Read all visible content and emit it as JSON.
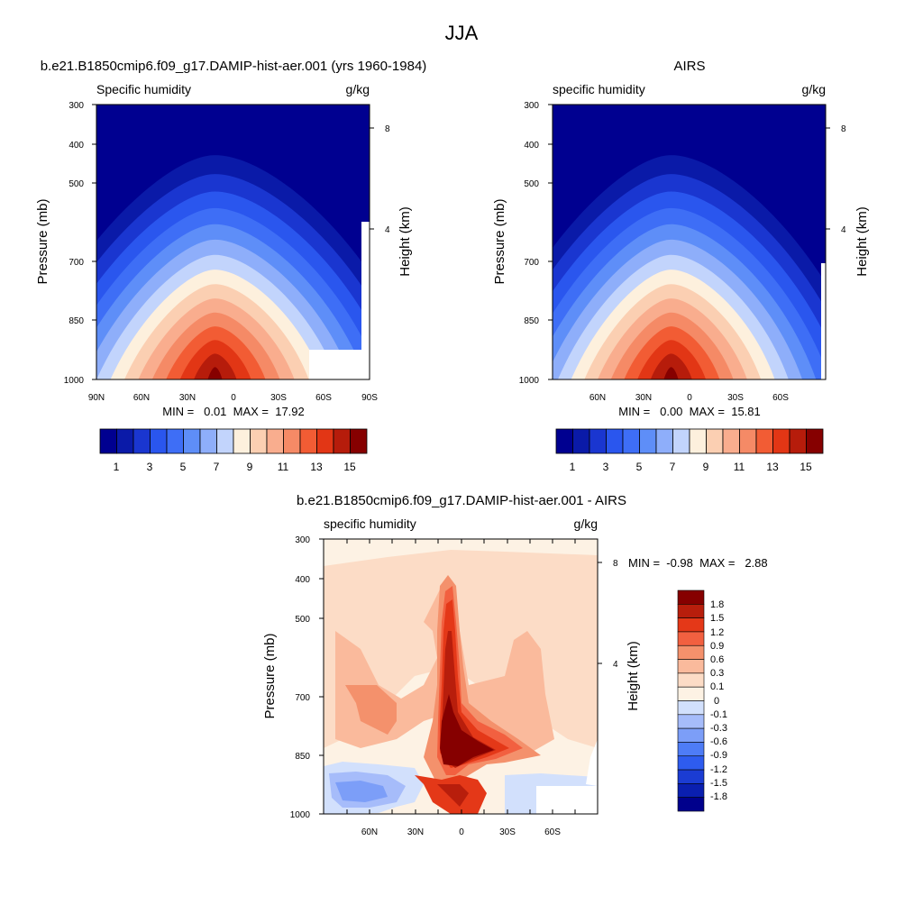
{
  "figure_title": "JJA",
  "chart_data": [
    {
      "type": "contour",
      "panel": "model",
      "title": "b.e21.B1850cmip6.f09_g17.DAMIP-hist-aer.001 (yrs 1960-1984)",
      "left_label": "Specific humidity",
      "right_label": "g/kg",
      "ylabel": "Pressure (mb)",
      "ylabel_right": "Height (km)",
      "pressure_ticks": [
        "300",
        "400",
        "500",
        "700",
        "850",
        "1000"
      ],
      "height_ticks": [
        "8",
        "4"
      ],
      "x_ticks": [
        "90N",
        "60N",
        "30N",
        "0",
        "30S",
        "60S",
        "90S"
      ],
      "xlim": [
        90,
        -90
      ],
      "ylim": [
        1000,
        300
      ],
      "min_max_text": "MIN =   0.01  MAX =  17.92",
      "min": 0.01,
      "max": 17.92,
      "colorbar_levels": [
        1,
        2,
        3,
        4,
        5,
        6,
        7,
        8,
        9,
        10,
        11,
        12,
        13,
        14,
        15
      ],
      "colorbar_labels": [
        "1",
        "3",
        "5",
        "7",
        "9",
        "11",
        "13",
        "15"
      ],
      "peak_lat": 10,
      "peak_value": 17.92,
      "missing_region": {
        "lat_from": -50,
        "lat_to": -90,
        "p_from": 925,
        "p_to": 1000
      }
    },
    {
      "type": "contour",
      "panel": "obs",
      "title": "AIRS",
      "left_label": "specific humidity",
      "right_label": "g/kg",
      "ylabel": "Pressure (mb)",
      "ylabel_right": "Height (km)",
      "pressure_ticks": [
        "300",
        "400",
        "500",
        "700",
        "850",
        "1000"
      ],
      "height_ticks": [
        "8",
        "4"
      ],
      "x_ticks": [
        "60N",
        "30N",
        "0",
        "30S",
        "60S"
      ],
      "xlim": [
        90,
        -90
      ],
      "ylim": [
        1000,
        300
      ],
      "min_max_text": "MIN =   0.00  MAX =  15.81",
      "min": 0.0,
      "max": 15.81,
      "colorbar_levels": [
        1,
        2,
        3,
        4,
        5,
        6,
        7,
        8,
        9,
        10,
        11,
        12,
        13,
        14,
        15
      ],
      "colorbar_labels": [
        "1",
        "3",
        "5",
        "7",
        "9",
        "11",
        "13",
        "15"
      ],
      "peak_lat": 10,
      "peak_value": 15.81
    },
    {
      "type": "contour",
      "panel": "difference",
      "title": "b.e21.B1850cmip6.f09_g17.DAMIP-hist-aer.001 - AIRS",
      "left_label": "specific humidity",
      "right_label": "g/kg",
      "ylabel": "Pressure (mb)",
      "ylabel_right": "Height (km)",
      "pressure_ticks": [
        "300",
        "400",
        "500",
        "700",
        "850",
        "1000"
      ],
      "height_ticks": [
        "8",
        "4"
      ],
      "x_ticks": [
        "60N",
        "30N",
        "0",
        "30S",
        "60S"
      ],
      "xlim": [
        90,
        -90
      ],
      "ylim": [
        1000,
        300
      ],
      "min_max_text": "MIN =  -0.98  MAX =   2.88",
      "min": -0.98,
      "max": 2.88,
      "colorbar_levels": [
        -1.8,
        -1.5,
        -1.2,
        -0.9,
        -0.6,
        -0.3,
        -0.1,
        0,
        0.1,
        0.3,
        0.6,
        0.9,
        1.2,
        1.5,
        1.8
      ],
      "colorbar_labels": [
        "1.8",
        "1.5",
        "1.2",
        "0.9",
        "0.6",
        "0.3",
        "0.1",
        "0",
        "-0.1",
        "-0.3",
        "-0.6",
        "-0.9",
        "-1.2",
        "-1.5",
        "-1.8"
      ],
      "peak_lat": 0,
      "peak_pressure": 850,
      "peak_value": 2.88
    }
  ],
  "colors": {
    "full_field": [
      "#000090",
      "#0a1aa8",
      "#1a36d0",
      "#2a56ee",
      "#3e6ef6",
      "#5e8ef8",
      "#8eaefa",
      "#c2d4fc",
      "#fdf0dd",
      "#fbcfb2",
      "#f9ad8e",
      "#f58a66",
      "#f25c34",
      "#e23615",
      "#b61c0b",
      "#860000"
    ],
    "difference": [
      "#00008c",
      "#0a1fb0",
      "#1b3cd3",
      "#2e5cef",
      "#4e7cf6",
      "#7c9ef8",
      "#a6bcfa",
      "#d2e0fc",
      "#fdf2e4",
      "#fcdcc6",
      "#faba9c",
      "#f4916c",
      "#f26040",
      "#e43818",
      "#b81e0c",
      "#860000"
    ]
  }
}
